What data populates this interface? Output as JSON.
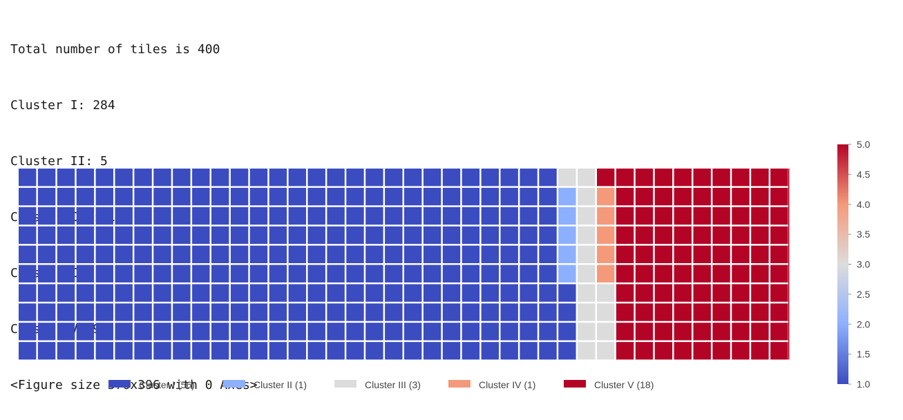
{
  "output_lines": [
    "Total number of tiles is 400",
    "Cluster I: 284",
    "Cluster II: 5",
    "Cluster III: 15",
    "Cluster IV: 5",
    "Cluster V: 91",
    "<Figure size 576x396 with 0 Axes>"
  ],
  "chart_data": {
    "type": "waffle",
    "grid": {
      "rows": 10,
      "columns": 40
    },
    "fill_order": "column-major, bottom-to-top, left-to-right",
    "categories": [
      {
        "name": "Cluster I",
        "tiles": 284,
        "legend_label": "Cluster I (56)",
        "color": "#3b4cc0"
      },
      {
        "name": "Cluster II",
        "tiles": 5,
        "legend_label": "Cluster II (1)",
        "color": "#8db0fe"
      },
      {
        "name": "Cluster III",
        "tiles": 15,
        "legend_label": "Cluster III (3)",
        "color": "#dddcdc"
      },
      {
        "name": "Cluster IV",
        "tiles": 5,
        "legend_label": "Cluster IV (1)",
        "color": "#f49a7b"
      },
      {
        "name": "Cluster V",
        "tiles": 91,
        "legend_label": "Cluster V (18)",
        "color": "#b40426"
      }
    ],
    "legend_position": "bottom",
    "colorbar": {
      "min": 1.0,
      "max": 5.0,
      "ticks": [
        "1.0",
        "1.5",
        "2.0",
        "2.5",
        "3.0",
        "3.5",
        "4.0",
        "4.5",
        "5.0"
      ],
      "colormap": "coolwarm",
      "stops": [
        "#3b4cc0",
        "#8db0fe",
        "#dddcdc",
        "#f49a7b",
        "#b40426"
      ]
    },
    "grid_lines": false
  }
}
